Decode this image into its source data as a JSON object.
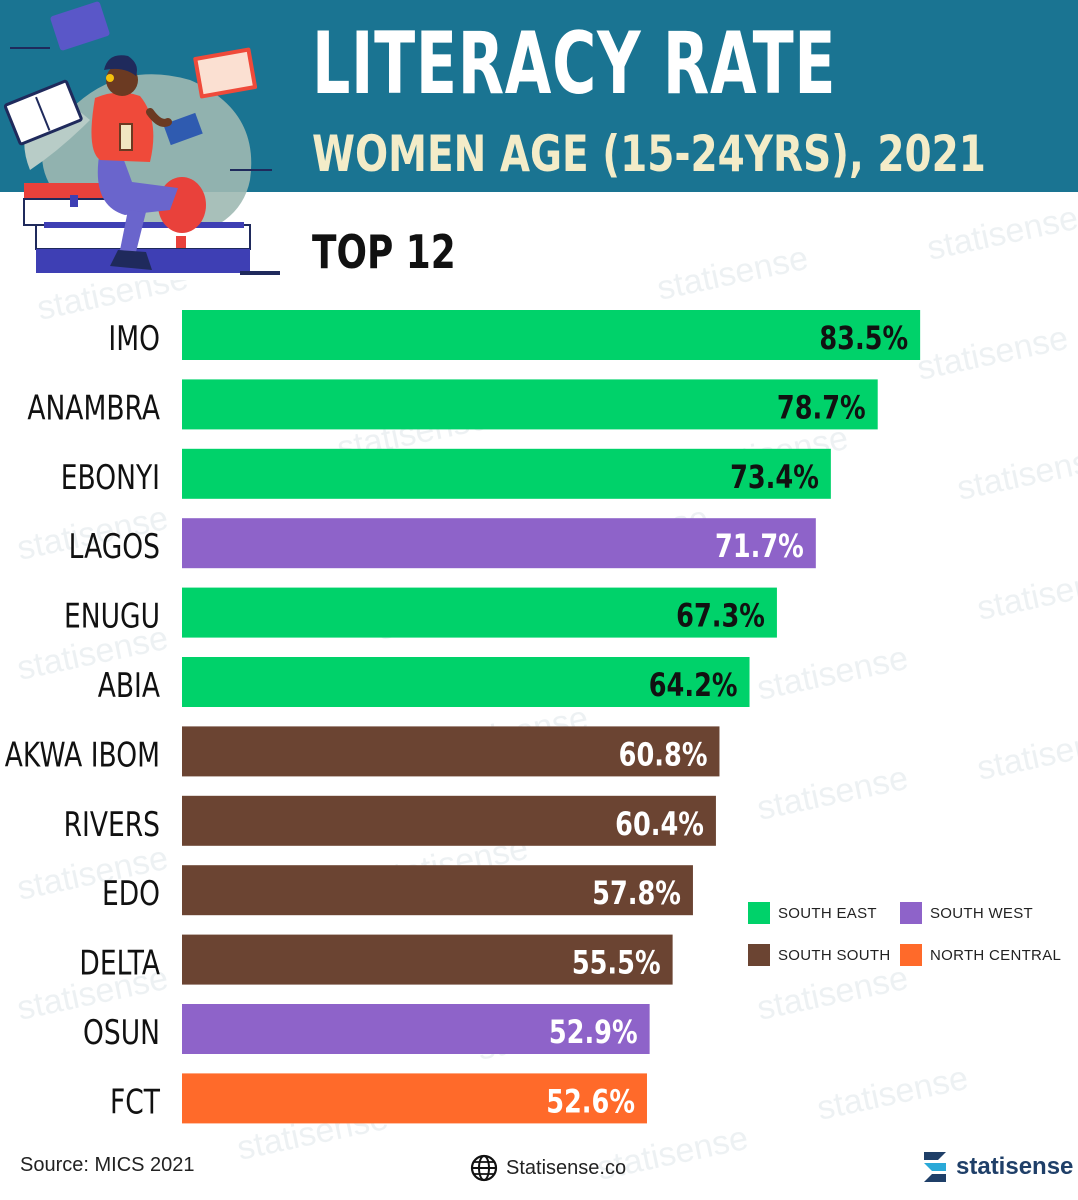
{
  "header": {
    "title": "LITERACY RATE",
    "subtitle": "WOMEN AGE (15-24YRS), 2021",
    "top_label": "TOP 12"
  },
  "chart_data": {
    "type": "bar",
    "orientation": "horizontal",
    "categories": [
      "IMO",
      "ANAMBRA",
      "EBONYI",
      "LAGOS",
      "ENUGU",
      "ABIA",
      "AKWA IBOM",
      "RIVERS",
      "EDO",
      "DELTA",
      "OSUN",
      "FCT"
    ],
    "values": [
      83.5,
      78.7,
      73.4,
      71.7,
      67.3,
      64.2,
      60.8,
      60.4,
      57.8,
      55.5,
      52.9,
      52.6
    ],
    "data_labels": [
      "83.5%",
      "78.7%",
      "73.4%",
      "71.7%",
      "67.3%",
      "64.2%",
      "60.8%",
      "60.4%",
      "57.8%",
      "55.5%",
      "52.9%",
      "52.6%"
    ],
    "regions": [
      "SOUTH EAST",
      "SOUTH EAST",
      "SOUTH EAST",
      "SOUTH WEST",
      "SOUTH EAST",
      "SOUTH EAST",
      "SOUTH SOUTH",
      "SOUTH SOUTH",
      "SOUTH SOUTH",
      "SOUTH SOUTH",
      "SOUTH WEST",
      "NORTH CENTRAL"
    ],
    "xlim": [
      0,
      100
    ],
    "grid": false,
    "legend_position": "right",
    "legend": [
      {
        "name": "SOUTH EAST",
        "color": "#00d26a",
        "label_color": "#111111"
      },
      {
        "name": "SOUTH WEST",
        "color": "#8e63c9",
        "label_color": "#ffffff"
      },
      {
        "name": "SOUTH SOUTH",
        "color": "#6b4432",
        "label_color": "#ffffff"
      },
      {
        "name": "NORTH CENTRAL",
        "color": "#ff6a2a",
        "label_color": "#ffffff"
      }
    ]
  },
  "footer": {
    "source": "Source: MICS 2021",
    "website": "Statisense.co",
    "brand": "statisense"
  },
  "watermark_text": "statisense",
  "icons": [
    "reading-woman-illustration",
    "globe-icon",
    "statisense-logo-icon"
  ],
  "colors": {
    "header_bg": "#1a7492",
    "title": "#ffffff",
    "subtitle": "#f3ecc8"
  }
}
